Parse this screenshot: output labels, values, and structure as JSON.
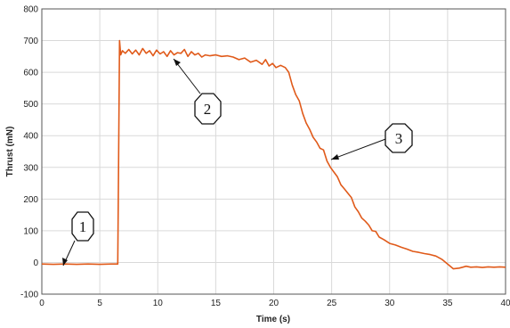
{
  "chart_data": {
    "type": "line",
    "title": "",
    "xlabel": "Time (s)",
    "ylabel": "Thrust (mN)",
    "xlim": [
      0,
      40
    ],
    "ylim": [
      -100,
      800
    ],
    "xticks": [
      0,
      5,
      10,
      15,
      20,
      25,
      30,
      35,
      40
    ],
    "yticks": [
      -100,
      0,
      100,
      200,
      300,
      400,
      500,
      600,
      700,
      800
    ],
    "grid": true,
    "legend": "none",
    "line_color": "#e05a1a",
    "series": [
      {
        "x": [
          0,
          1,
          2,
          3,
          4,
          5,
          6,
          6.55,
          6.62,
          6.7,
          6.8,
          6.95,
          7.2,
          7.5,
          7.8,
          8.1,
          8.4,
          8.7,
          9.0,
          9.3,
          9.6,
          9.9,
          10.2,
          10.5,
          10.8,
          11.1,
          11.4,
          11.7,
          12.0,
          12.3,
          12.6,
          12.9,
          13.2,
          13.5,
          13.8,
          14.1,
          14.5,
          15.0,
          15.5,
          16.0,
          16.5,
          17.0,
          17.5,
          18.0,
          18.5,
          19.0,
          19.3,
          19.6,
          19.9,
          20.2,
          20.6,
          21.0,
          21.3,
          21.6,
          21.9,
          22.2,
          22.5,
          22.8,
          23.1,
          23.4,
          23.7,
          24.0,
          24.3,
          24.6,
          24.9,
          25.2,
          25.5,
          25.8,
          26.1,
          26.4,
          26.7,
          27.0,
          27.3,
          27.6,
          27.9,
          28.2,
          28.5,
          28.8,
          29.1,
          29.5,
          30.0,
          30.5,
          31.0,
          31.5,
          32.0,
          32.5,
          33.0,
          33.5,
          34.0,
          34.5,
          35.0,
          35.5,
          36.0,
          36.3,
          36.6,
          37.0,
          37.5,
          38.0,
          38.5,
          39.0,
          39.5,
          40.0
        ],
        "y": [
          -5,
          -6,
          -5,
          -6,
          -5,
          -6,
          -5,
          -5,
          300,
          700,
          655,
          668,
          660,
          672,
          658,
          670,
          655,
          675,
          660,
          668,
          652,
          670,
          658,
          665,
          650,
          668,
          655,
          662,
          660,
          672,
          650,
          665,
          655,
          660,
          648,
          655,
          652,
          655,
          650,
          652,
          648,
          640,
          645,
          632,
          638,
          625,
          640,
          620,
          628,
          615,
          622,
          615,
          600,
          560,
          530,
          510,
          470,
          440,
          420,
          395,
          380,
          360,
          355,
          320,
          300,
          285,
          270,
          245,
          232,
          218,
          205,
          175,
          160,
          140,
          130,
          118,
          100,
          98,
          80,
          72,
          60,
          55,
          48,
          42,
          35,
          32,
          28,
          25,
          20,
          10,
          -5,
          -20,
          -18,
          -15,
          -12,
          -15,
          -14,
          -16,
          -14,
          -15,
          -14,
          -15
        ]
      }
    ],
    "annotations": [
      "1",
      "2",
      "3"
    ]
  }
}
